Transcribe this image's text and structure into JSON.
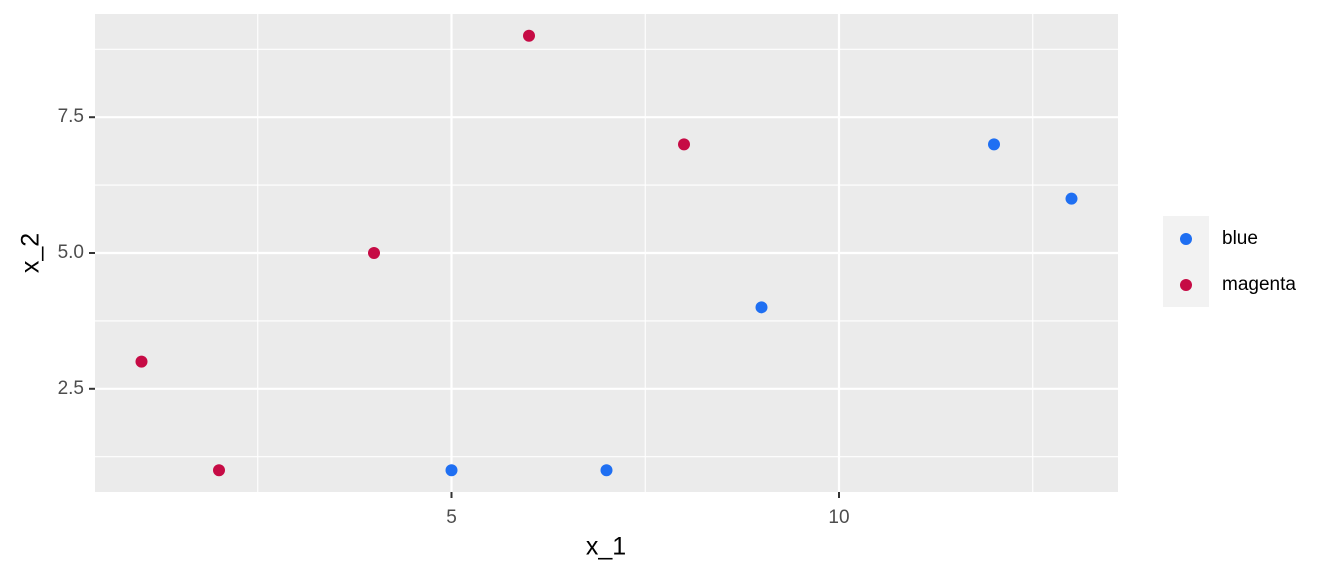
{
  "chart_data": {
    "type": "scatter",
    "x_label": "x_1",
    "y_label": "x_2",
    "series": [
      {
        "name": "blue",
        "color": "#1f6ff2",
        "x": [
          5,
          7,
          9,
          12,
          13
        ],
        "values": [
          1,
          1,
          4,
          7,
          6
        ]
      },
      {
        "name": "magenta",
        "color": "#c60b45",
        "x": [
          1,
          2,
          4,
          6,
          8
        ],
        "values": [
          3,
          1,
          5,
          9,
          7
        ]
      }
    ],
    "xlim": [
      0.4,
      13.6
    ],
    "ylim": [
      0.6,
      9.4
    ],
    "xticks": [
      5,
      10
    ],
    "yticks": [
      2.5,
      {
        "value": 5,
        "label": "5.0"
      },
      7.5
    ],
    "xminor": [
      2.5,
      7.5,
      12.5
    ],
    "yminor": [
      1.25,
      3.75,
      6.25,
      8.75
    ],
    "grid": true,
    "legend": "right"
  }
}
